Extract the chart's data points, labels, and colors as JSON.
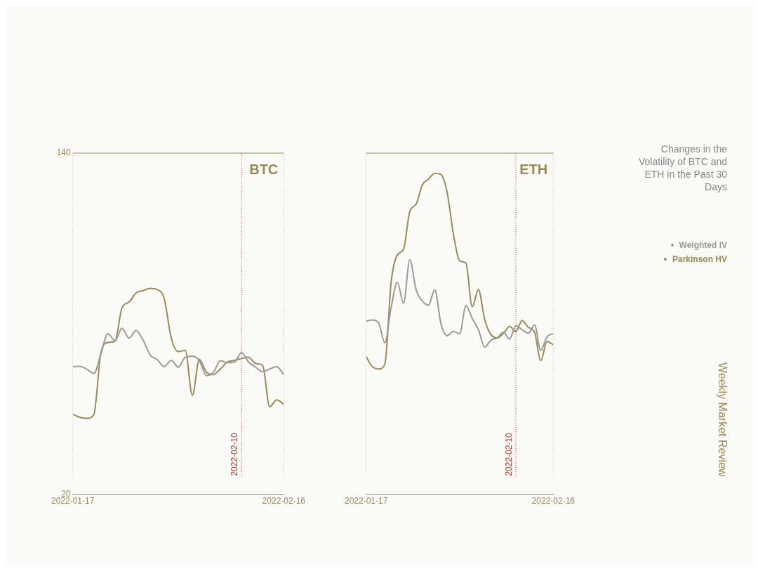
{
  "chart_data": [
    {
      "type": "line",
      "title": "BTC",
      "x": [
        "2022-01-17",
        "2022-01-18",
        "2022-01-19",
        "2022-01-20",
        "2022-01-21",
        "2022-01-22",
        "2022-01-23",
        "2022-01-24",
        "2022-01-25",
        "2022-01-26",
        "2022-01-27",
        "2022-01-28",
        "2022-01-29",
        "2022-01-30",
        "2022-01-31",
        "2022-02-01",
        "2022-02-02",
        "2022-02-03",
        "2022-02-04",
        "2022-02-05",
        "2022-02-06",
        "2022-02-07",
        "2022-02-08",
        "2022-02-09",
        "2022-02-10",
        "2022-02-11",
        "2022-02-12",
        "2022-02-13",
        "2022-02-14",
        "2022-02-15",
        "2022-02-16"
      ],
      "series": [
        {
          "name": "Weighted IV",
          "color": "#9a9a9a",
          "values": [
            64.9,
            65,
            64,
            62.5,
            69.4,
            76.5,
            74,
            78.4,
            74.9,
            77.6,
            74.2,
            69,
            67.4,
            64.9,
            67.1,
            64.7,
            68.2,
            68.6,
            67,
            61.7,
            62.9,
            67,
            66.3,
            66.5,
            69.8,
            66.5,
            64.7,
            63.1,
            64.1,
            64.9,
            62.1
          ]
        },
        {
          "name": "Parkinson HV",
          "color": "#9a8a55",
          "values": [
            48.1,
            47.1,
            46.7,
            48,
            69.8,
            73.4,
            73.8,
            85.6,
            87.6,
            90.8,
            91.6,
            92.4,
            92,
            88.8,
            75,
            70.2,
            70.6,
            54.8,
            67.4,
            62.9,
            62.1,
            64.1,
            66.5,
            67.1,
            67.8,
            68.2,
            66,
            65.3,
            50.8,
            53.2,
            51.6
          ]
        }
      ],
      "xlim": [
        "2022-01-17",
        "2022-02-16"
      ],
      "xticks": [
        "2022-01-17",
        "2022-02-16"
      ],
      "ylim": [
        20,
        140
      ],
      "yticks": [
        20,
        140
      ],
      "ref_lines": [
        {
          "axis": "x",
          "value": "2022-02-10",
          "label": "2022-02-10",
          "color": "#c0392b",
          "line_style": "dotted"
        }
      ],
      "legend": "right",
      "grid": false,
      "annotations": [
        "Changes in the Volatility of BTC and ETH in the Past 30 Days",
        "Weekly Market Review"
      ]
    },
    {
      "type": "line",
      "title": "ETH",
      "x": [
        "2022-01-17",
        "2022-01-18",
        "2022-01-19",
        "2022-01-20",
        "2022-01-21",
        "2022-01-22",
        "2022-01-23",
        "2022-01-24",
        "2022-01-25",
        "2022-01-26",
        "2022-01-27",
        "2022-01-28",
        "2022-01-29",
        "2022-01-30",
        "2022-01-31",
        "2022-02-01",
        "2022-02-02",
        "2022-02-03",
        "2022-02-04",
        "2022-02-05",
        "2022-02-06",
        "2022-02-07",
        "2022-02-08",
        "2022-02-09",
        "2022-02-10",
        "2022-02-11",
        "2022-02-12",
        "2022-02-13",
        "2022-02-14",
        "2022-02-15",
        "2022-02-16"
      ],
      "series": [
        {
          "color": "#9a9a9a",
          "values": [
            80.9,
            81.3,
            80.3,
            73.3,
            85.6,
            94.5,
            87.2,
            102.5,
            92,
            88,
            86.5,
            92,
            79.9,
            75.8,
            77.3,
            76.5,
            86.4,
            81.9,
            77.9,
            71.8,
            74.2,
            75,
            77,
            74.6,
            79.3,
            77.9,
            76.7,
            79.5,
            70.6,
            75.4,
            76.5
          ]
        },
        {
          "color": "#9a8a55",
          "values": [
            68.4,
            64.9,
            64.1,
            65.7,
            94.5,
            104.2,
            106.2,
            119.5,
            122,
            128.8,
            130.9,
            132.9,
            132.5,
            126,
            111.4,
            102.1,
            101.3,
            85.9,
            92,
            81.5,
            76.2,
            75,
            76.6,
            79,
            77.3,
            81.1,
            78.7,
            77,
            67,
            73.8,
            72.6
          ]
        }
      ],
      "xlim": [
        "2022-01-17",
        "2022-02-16"
      ],
      "xticks": [
        "2022-01-17",
        "2022-02-16"
      ],
      "ylim": [
        20,
        140
      ],
      "tick_labels": "x",
      "ref_lines": [
        {
          "axis": "x",
          "value": "2022-02-10",
          "label": "2022-02-10",
          "color": "#c0392b",
          "line_style": "dotted"
        }
      ],
      "grid": false
    }
  ]
}
